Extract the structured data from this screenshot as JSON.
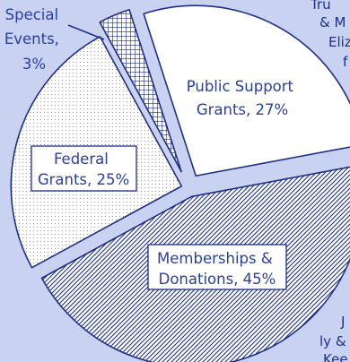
{
  "chart_data": {
    "type": "pie",
    "title": "",
    "slices": [
      {
        "label": "Special Events, 3%",
        "label_lines": [
          "Special",
          "Events,",
          "3%"
        ],
        "value": 3,
        "fill": "crosshatch"
      },
      {
        "label": "Public Support Grants, 27%",
        "label_lines": [
          "Public Support",
          "Grants, 27%"
        ],
        "value": 27,
        "fill": "white"
      },
      {
        "label": "Memberships & Donations, 45%",
        "label_lines": [
          "Memberships &",
          "Donations, 45%"
        ],
        "value": 45,
        "fill": "diagonal-hatch"
      },
      {
        "label": "Federal Grants, 25%",
        "label_lines": [
          "Federal",
          "Grants, 25%"
        ],
        "value": 25,
        "fill": "dots"
      }
    ]
  },
  "side_text": {
    "top_right": [
      "Tru",
      "& M",
      "Eliz",
      "f"
    ],
    "bottom_right": [
      "J",
      "ly &",
      "Kee"
    ]
  },
  "colors": {
    "background": "#c9d3f1",
    "ink": "#1f2f86",
    "label_text": "#2a3f9b",
    "slice_base": "#ffffff"
  }
}
